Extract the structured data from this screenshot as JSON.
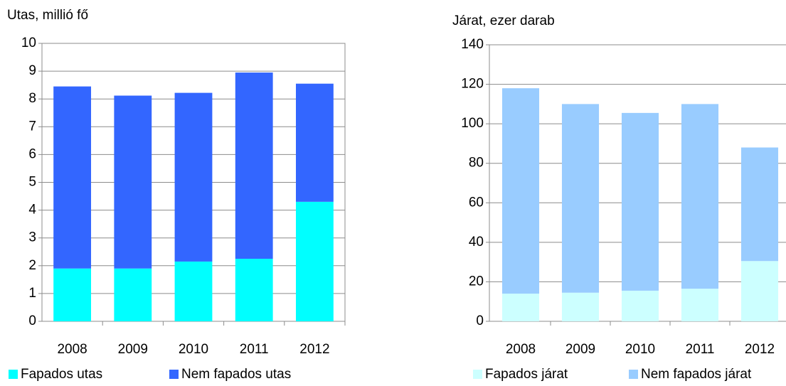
{
  "chart_data": [
    {
      "type": "bar",
      "stacked": true,
      "title": "Utas, millió fő",
      "categories": [
        "2008",
        "2009",
        "2010",
        "2011",
        "2012"
      ],
      "series": [
        {
          "name": "Fapados utas",
          "color": "#00ffff",
          "values": [
            1.9,
            1.9,
            2.15,
            2.25,
            4.3
          ]
        },
        {
          "name": "Nem fapados utas",
          "color": "#3366ff",
          "values": [
            6.55,
            6.22,
            6.07,
            6.7,
            4.25
          ]
        }
      ],
      "ylim": [
        0,
        10
      ],
      "yticks": [
        0,
        1,
        2,
        3,
        4,
        5,
        6,
        7,
        8,
        9,
        10
      ],
      "grid": true,
      "legend": "bottom"
    },
    {
      "type": "bar",
      "stacked": true,
      "title": "Járat, ezer darab",
      "categories": [
        "2008",
        "2009",
        "2010",
        "2011",
        "2012"
      ],
      "series": [
        {
          "name": "Fapados járat",
          "color": "#ccffff",
          "values": [
            14,
            14.5,
            15.5,
            16.5,
            30.5
          ]
        },
        {
          "name": "Nem fapados járat",
          "color": "#99ccff",
          "values": [
            104,
            95.5,
            90,
            93.5,
            57.5
          ]
        }
      ],
      "ylim": [
        0,
        140
      ],
      "yticks": [
        0,
        20,
        40,
        60,
        80,
        100,
        120,
        140
      ],
      "grid": true,
      "legend": "bottom"
    }
  ]
}
